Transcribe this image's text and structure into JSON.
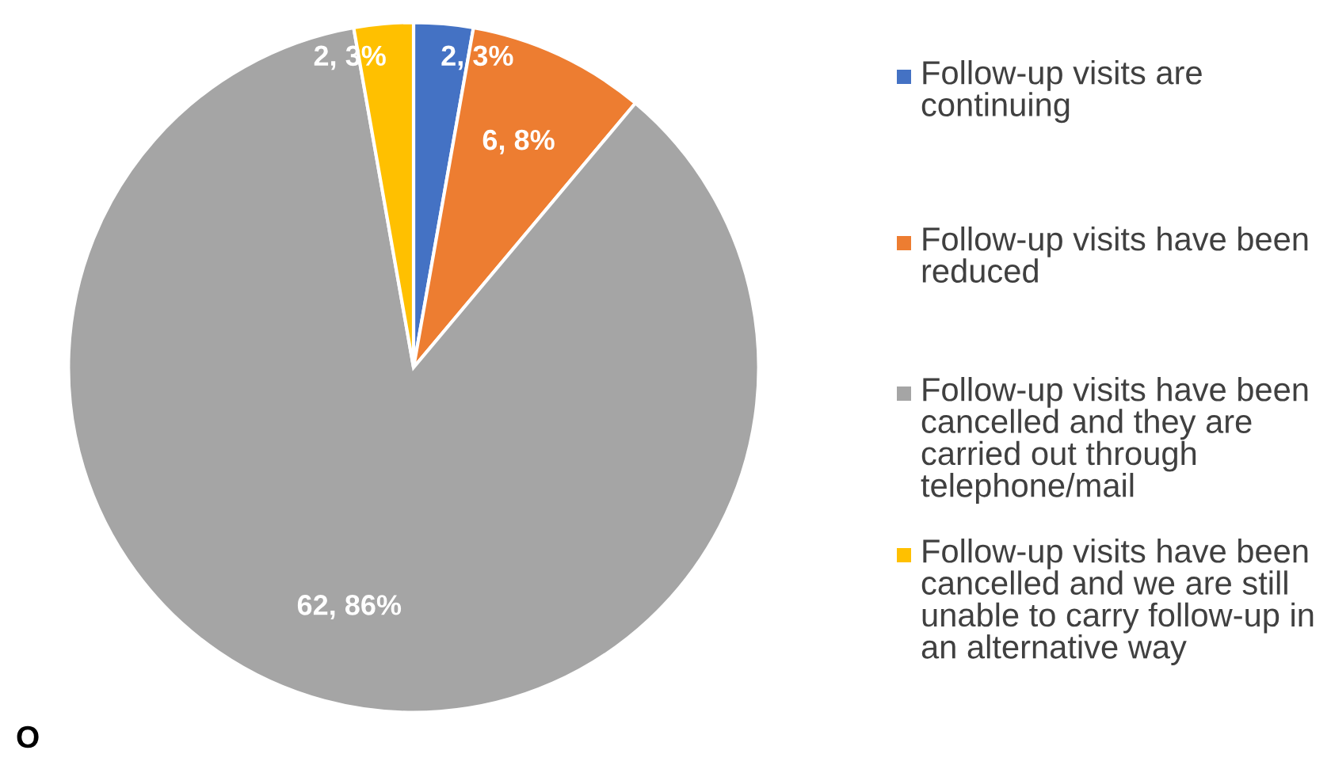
{
  "chart_data": {
    "type": "pie",
    "categories": [
      "Follow-up visits are continuing",
      "Follow-up visits have been reduced",
      "Follow-up visits have been cancelled and they are carried out through telephone/mail",
      "Follow-up visits have been cancelled and we are still unable to carry follow-up in an alternative way"
    ],
    "values": [
      2,
      6,
      62,
      2
    ],
    "value_labels": [
      "2, 3%",
      "6, 8%",
      "62, 86%",
      "2, 3%"
    ],
    "colors": [
      "#4472c4",
      "#ed7d31",
      "#a5a5a5",
      "#ffc000"
    ],
    "legend": "right",
    "annotations": [
      "O"
    ]
  }
}
